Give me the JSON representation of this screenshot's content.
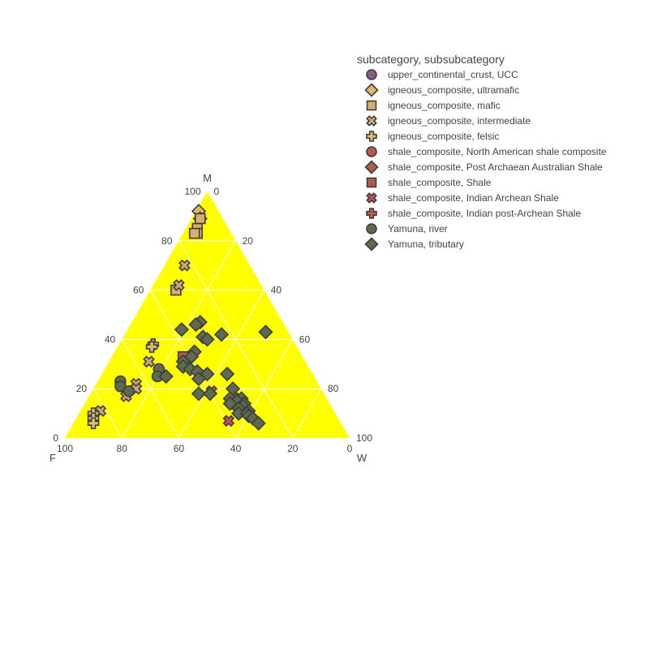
{
  "chart_data": {
    "type": "scatter",
    "subtype": "ternary",
    "background_color": "#ffff00",
    "grid": true,
    "legend_position": "top-right",
    "axes": {
      "a": {
        "title": "M",
        "ticks": [
          "0",
          "20",
          "40",
          "60",
          "80",
          "100"
        ]
      },
      "b": {
        "title": "F",
        "ticks": [
          "0",
          "20",
          "40",
          "60",
          "80",
          "100"
        ]
      },
      "c": {
        "title": "W",
        "ticks": [
          "0",
          "20",
          "40",
          "60",
          "80",
          "100"
        ]
      }
    },
    "legend_title": "subcategory, subsubcategory",
    "series": [
      {
        "name": "upper_continental_crust, UCC",
        "symbol": "circle",
        "color": "#8a5c8a",
        "points": []
      },
      {
        "name": "igneous_composite, ultramafic",
        "symbol": "diamond",
        "color": "#e0b86a",
        "points": [
          [
            92,
            7,
            1
          ],
          [
            89,
            8,
            3
          ]
        ]
      },
      {
        "name": "igneous_composite, mafic",
        "symbol": "square",
        "color": "#d9ae6c",
        "points": [
          [
            89,
            8,
            3
          ],
          [
            85,
            11,
            4
          ],
          [
            83,
            12,
            5
          ],
          [
            83,
            13,
            4
          ],
          [
            60,
            31,
            9
          ]
        ]
      },
      {
        "name": "igneous_composite, intermediate",
        "symbol": "x",
        "color": "#cfa878",
        "points": [
          [
            70,
            23,
            7
          ],
          [
            62,
            29,
            9
          ],
          [
            31,
            55,
            14
          ],
          [
            22,
            64,
            14
          ],
          [
            20,
            65,
            15
          ],
          [
            17,
            70,
            13
          ],
          [
            11,
            82,
            7
          ]
        ]
      },
      {
        "name": "igneous_composite, felsic",
        "symbol": "cross",
        "color": "#e2bb70",
        "points": [
          [
            38,
            50,
            12
          ],
          [
            37,
            51,
            12
          ],
          [
            10,
            85,
            5
          ],
          [
            8,
            86,
            6
          ],
          [
            6,
            87,
            7
          ]
        ]
      },
      {
        "name": "shale_composite, North American shale composite",
        "symbol": "circle",
        "color": "#b45b4e",
        "points": []
      },
      {
        "name": "shale_composite, Post Archaean Australian Shale",
        "symbol": "diamond",
        "color": "#a8614a",
        "points": []
      },
      {
        "name": "shale_composite, Shale",
        "symbol": "square",
        "color": "#b05a4e",
        "points": [
          [
            33,
            42,
            25
          ]
        ]
      },
      {
        "name": "shale_composite, Indian Archean Shale",
        "symbol": "x",
        "color": "#c05060",
        "points": [
          [
            19,
            39,
            42
          ],
          [
            7,
            39,
            54
          ]
        ]
      },
      {
        "name": "shale_composite, Indian post-Archean Shale",
        "symbol": "cross",
        "color": "#b8604c",
        "points": [
          [
            16,
            32,
            52
          ]
        ]
      },
      {
        "name": "Yamuna, river",
        "symbol": "circle",
        "color": "#5f6a4f",
        "points": [
          [
            23,
            69,
            8
          ],
          [
            21,
            70,
            9
          ],
          [
            19,
            68,
            13
          ],
          [
            28,
            53,
            19
          ],
          [
            25,
            55,
            20
          ]
        ]
      },
      {
        "name": "Yamuna, tributary",
        "symbol": "diamond",
        "color": "#5f6a4f",
        "points": [
          [
            47,
            29,
            24
          ],
          [
            46,
            31,
            23
          ],
          [
            44,
            37,
            19
          ],
          [
            42,
            24,
            34
          ],
          [
            41,
            31,
            28
          ],
          [
            40,
            30,
            30
          ],
          [
            43,
            8,
            49
          ],
          [
            35,
            37,
            28
          ],
          [
            33,
            39,
            28
          ],
          [
            31,
            43,
            26
          ],
          [
            29,
            44,
            27
          ],
          [
            28,
            42,
            30
          ],
          [
            27,
            40,
            33
          ],
          [
            26,
            37,
            37
          ],
          [
            26,
            30,
            44
          ],
          [
            25,
            52,
            23
          ],
          [
            24,
            41,
            35
          ],
          [
            20,
            31,
            49
          ],
          [
            18,
            44,
            38
          ],
          [
            18,
            40,
            42
          ],
          [
            16,
            34,
            50
          ],
          [
            16,
            30,
            54
          ],
          [
            15,
            32,
            53
          ],
          [
            14,
            35,
            51
          ],
          [
            14,
            30,
            56
          ],
          [
            13,
            31,
            56
          ],
          [
            12,
            33,
            55
          ],
          [
            11,
            30,
            59
          ],
          [
            10,
            34,
            56
          ],
          [
            10,
            31,
            59
          ],
          [
            9,
            31,
            60
          ],
          [
            8,
            30,
            62
          ],
          [
            6,
            29,
            65
          ]
        ]
      }
    ]
  }
}
